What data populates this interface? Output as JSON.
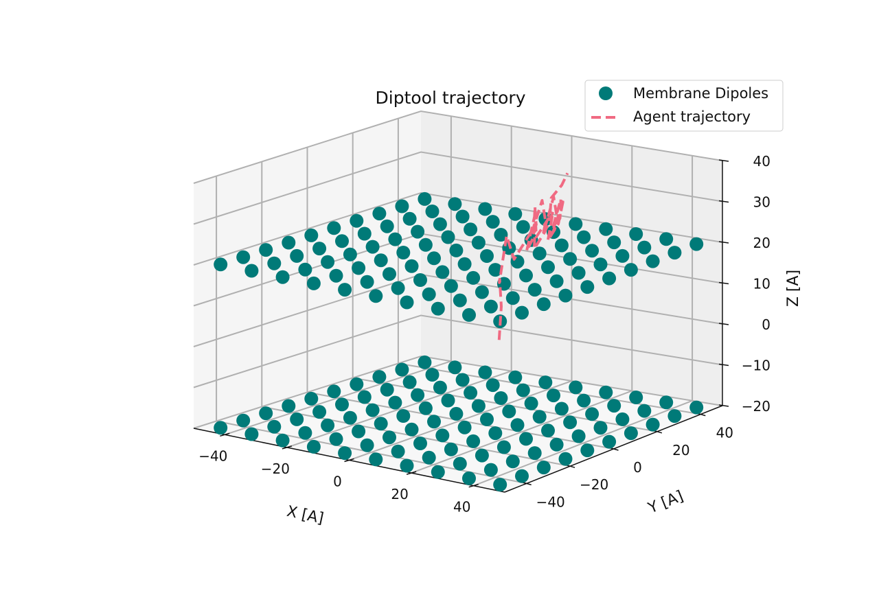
{
  "chart_data": {
    "type": "scatter",
    "projection": "3d",
    "title": "Diptool trajectory",
    "xlabel": "X [A]",
    "ylabel": "Y [A]",
    "zlabel": "Z [A]",
    "xlim": [
      -50,
      50
    ],
    "ylim": [
      -50,
      50
    ],
    "zlim": [
      -20,
      40
    ],
    "xticks": [
      "−40",
      "−20",
      "0",
      "20",
      "40"
    ],
    "yticks": [
      "−40",
      "−20",
      "0",
      "20",
      "40"
    ],
    "zticks": [
      "−20",
      "−10",
      "0",
      "10",
      "20",
      "30",
      "40"
    ],
    "grid": true,
    "legend_position": "top-right",
    "colors": {
      "dipoles": "#007a78",
      "trajectory": "#f06a82",
      "grid": "#b0b0b0",
      "pane": "#f2f2f2"
    },
    "legend": [
      "Membrane Dipoles",
      "Agent trajectory"
    ],
    "series": [
      {
        "name": "Membrane Dipoles",
        "kind": "markers",
        "grid_x": [
          -45,
          -35,
          -25,
          -15,
          -5,
          5,
          15,
          25,
          35,
          45
        ],
        "grid_y": [
          -45,
          -35,
          -25,
          -15,
          -5,
          5,
          15,
          25,
          35,
          45
        ],
        "z_levels": [
          -20,
          20
        ]
      },
      {
        "name": "Agent trajectory",
        "kind": "line",
        "x": [
          9,
          9,
          7,
          4,
          3,
          2,
          3,
          5,
          7,
          6,
          8,
          10,
          9,
          11,
          12,
          10,
          13,
          14,
          12,
          15,
          16,
          14,
          17,
          18,
          16,
          19,
          20,
          18,
          21,
          20,
          19,
          22,
          21,
          23,
          22
        ],
        "y": [
          5,
          6,
          8,
          12,
          15,
          18,
          20,
          22,
          24,
          25,
          27,
          28,
          27,
          29,
          30,
          28,
          27,
          26,
          24,
          23,
          20,
          18,
          15,
          12,
          10,
          8,
          6,
          5,
          4,
          6,
          8,
          10,
          12,
          14,
          18
        ],
        "z": [
          0,
          8,
          14,
          12,
          17,
          22,
          16,
          20,
          24,
          18,
          22,
          27,
          20,
          24,
          30,
          22,
          26,
          31,
          22,
          27,
          33,
          24,
          28,
          34,
          26,
          29,
          32,
          23,
          27,
          34,
          26,
          31,
          35,
          38,
          40
        ]
      }
    ]
  }
}
